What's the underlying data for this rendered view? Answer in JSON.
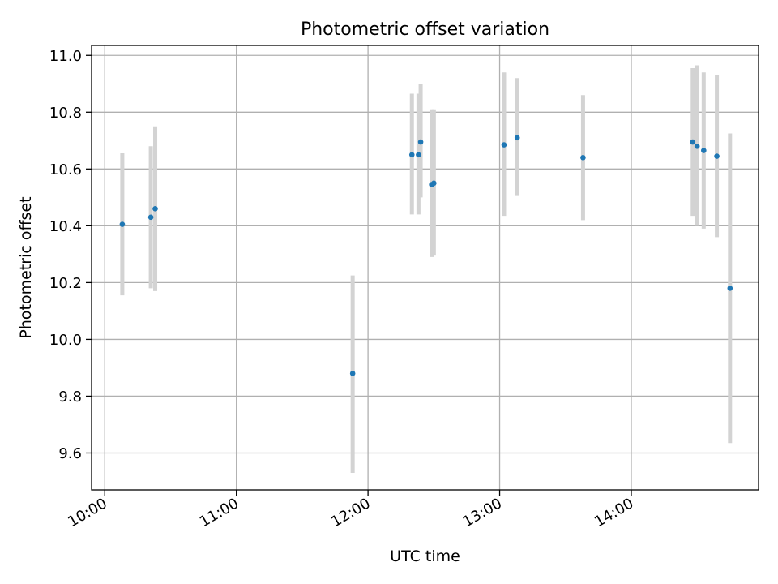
{
  "chart_data": {
    "type": "scatter",
    "title": "Photometric offset variation",
    "xlabel": "UTC time",
    "ylabel": "Photometric offset",
    "x_tick_labels": [
      "10:00",
      "11:00",
      "12:00",
      "13:00",
      "14:00"
    ],
    "x_ticks": [
      "10:00",
      "11:00",
      "12:00",
      "13:00",
      "14:00"
    ],
    "xlim": [
      "09:54",
      "14:58"
    ],
    "y_ticks": [
      9.6,
      9.8,
      10.0,
      10.2,
      10.4,
      10.6,
      10.8,
      11.0
    ],
    "y_tick_labels": [
      "9.6",
      "9.8",
      "10.0",
      "10.2",
      "10.4",
      "10.6",
      "10.8",
      "11.0"
    ],
    "ylim": [
      9.47,
      11.035
    ],
    "grid": true,
    "point_color": "#1f77b4",
    "errorbar_color": "#d3d3d3",
    "points": [
      {
        "x": "10:08",
        "y": 10.405,
        "low": 10.155,
        "high": 10.655
      },
      {
        "x": "10:21",
        "y": 10.43,
        "low": 10.18,
        "high": 10.68
      },
      {
        "x": "10:23",
        "y": 10.46,
        "low": 10.17,
        "high": 10.75
      },
      {
        "x": "11:53",
        "y": 9.88,
        "low": 9.53,
        "high": 10.225
      },
      {
        "x": "12:20",
        "y": 10.65,
        "low": 10.44,
        "high": 10.865
      },
      {
        "x": "12:23",
        "y": 10.65,
        "low": 10.44,
        "high": 10.865
      },
      {
        "x": "12:24",
        "y": 10.695,
        "low": 10.5,
        "high": 10.9
      },
      {
        "x": "12:29",
        "y": 10.545,
        "low": 10.29,
        "high": 10.81
      },
      {
        "x": "12:30",
        "y": 10.55,
        "low": 10.295,
        "high": 10.81
      },
      {
        "x": "13:02",
        "y": 10.685,
        "low": 10.435,
        "high": 10.94
      },
      {
        "x": "13:08",
        "y": 10.71,
        "low": 10.505,
        "high": 10.92
      },
      {
        "x": "13:38",
        "y": 10.64,
        "low": 10.42,
        "high": 10.86
      },
      {
        "x": "14:28",
        "y": 10.695,
        "low": 10.435,
        "high": 10.955
      },
      {
        "x": "14:30",
        "y": 10.68,
        "low": 10.4,
        "high": 10.965
      },
      {
        "x": "14:33",
        "y": 10.665,
        "low": 10.39,
        "high": 10.94
      },
      {
        "x": "14:39",
        "y": 10.645,
        "low": 10.36,
        "high": 10.93
      },
      {
        "x": "14:45",
        "y": 10.18,
        "low": 9.635,
        "high": 10.725
      }
    ]
  }
}
